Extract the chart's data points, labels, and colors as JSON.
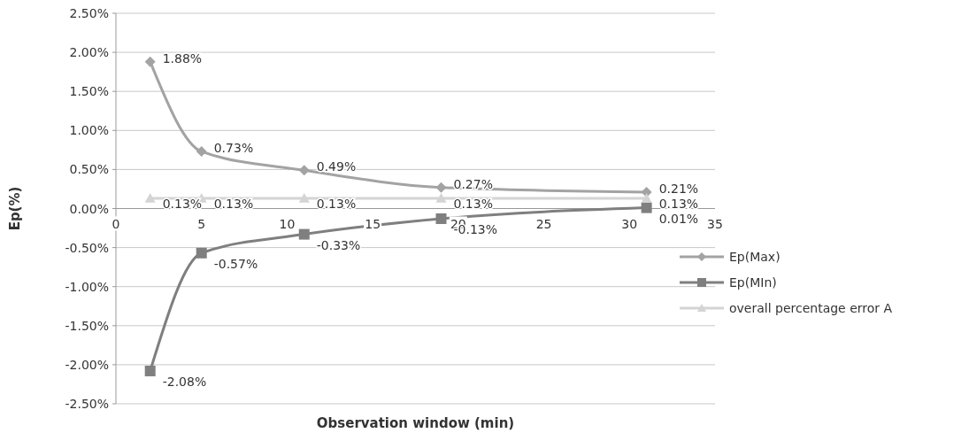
{
  "chart_data": {
    "type": "line",
    "xlabel": "Observation window (min)",
    "ylabel": "Ep(%)",
    "x": [
      2,
      5,
      11,
      19,
      31
    ],
    "xlim": [
      0,
      35
    ],
    "xticks": [
      0,
      5,
      10,
      15,
      20,
      25,
      30,
      35
    ],
    "ylim": [
      -2.5,
      2.5
    ],
    "yticks": [
      {
        "value": -2.5,
        "label": "-2.50%"
      },
      {
        "value": -2,
        "label": "-2.00%"
      },
      {
        "value": -1.5,
        "label": "-1.50%"
      },
      {
        "value": -1,
        "label": "-1.00%"
      },
      {
        "value": -0.5,
        "label": "-0.50%"
      },
      {
        "value": 0,
        "label": "0.00%"
      },
      {
        "value": 0.5,
        "label": "0.50%"
      },
      {
        "value": 1,
        "label": "1.00%"
      },
      {
        "value": 1.5,
        "label": "1.50%"
      },
      {
        "value": 2,
        "label": "2.00%"
      },
      {
        "value": 2.5,
        "label": "2.50%"
      }
    ],
    "grid": "y",
    "legend": "right",
    "series": [
      {
        "name": "Ep(Max)",
        "color": "#a3a3a3",
        "marker": "diamond",
        "values": [
          1.88,
          0.73,
          0.49,
          0.27,
          0.21
        ],
        "value_labels": [
          "1.88%",
          "0.73%",
          "0.49%",
          "0.27%",
          "0.21%"
        ]
      },
      {
        "name": "Ep(MIn)",
        "color": "#7f7f7f",
        "marker": "square",
        "values": [
          -2.08,
          -0.57,
          -0.33,
          -0.13,
          0.01
        ],
        "value_labels": [
          "-2.08%",
          "-0.57%",
          "-0.33%",
          "-0.13%",
          "0.01%"
        ]
      },
      {
        "name": "overall percentage error A",
        "color": "#d4d4d4",
        "marker": "triangle",
        "values": [
          0.13,
          0.13,
          0.13,
          0.13,
          0.13
        ],
        "value_labels": [
          "0.13%",
          "0.13%",
          "0.13%",
          "0.13%",
          "0.13%"
        ]
      }
    ]
  }
}
